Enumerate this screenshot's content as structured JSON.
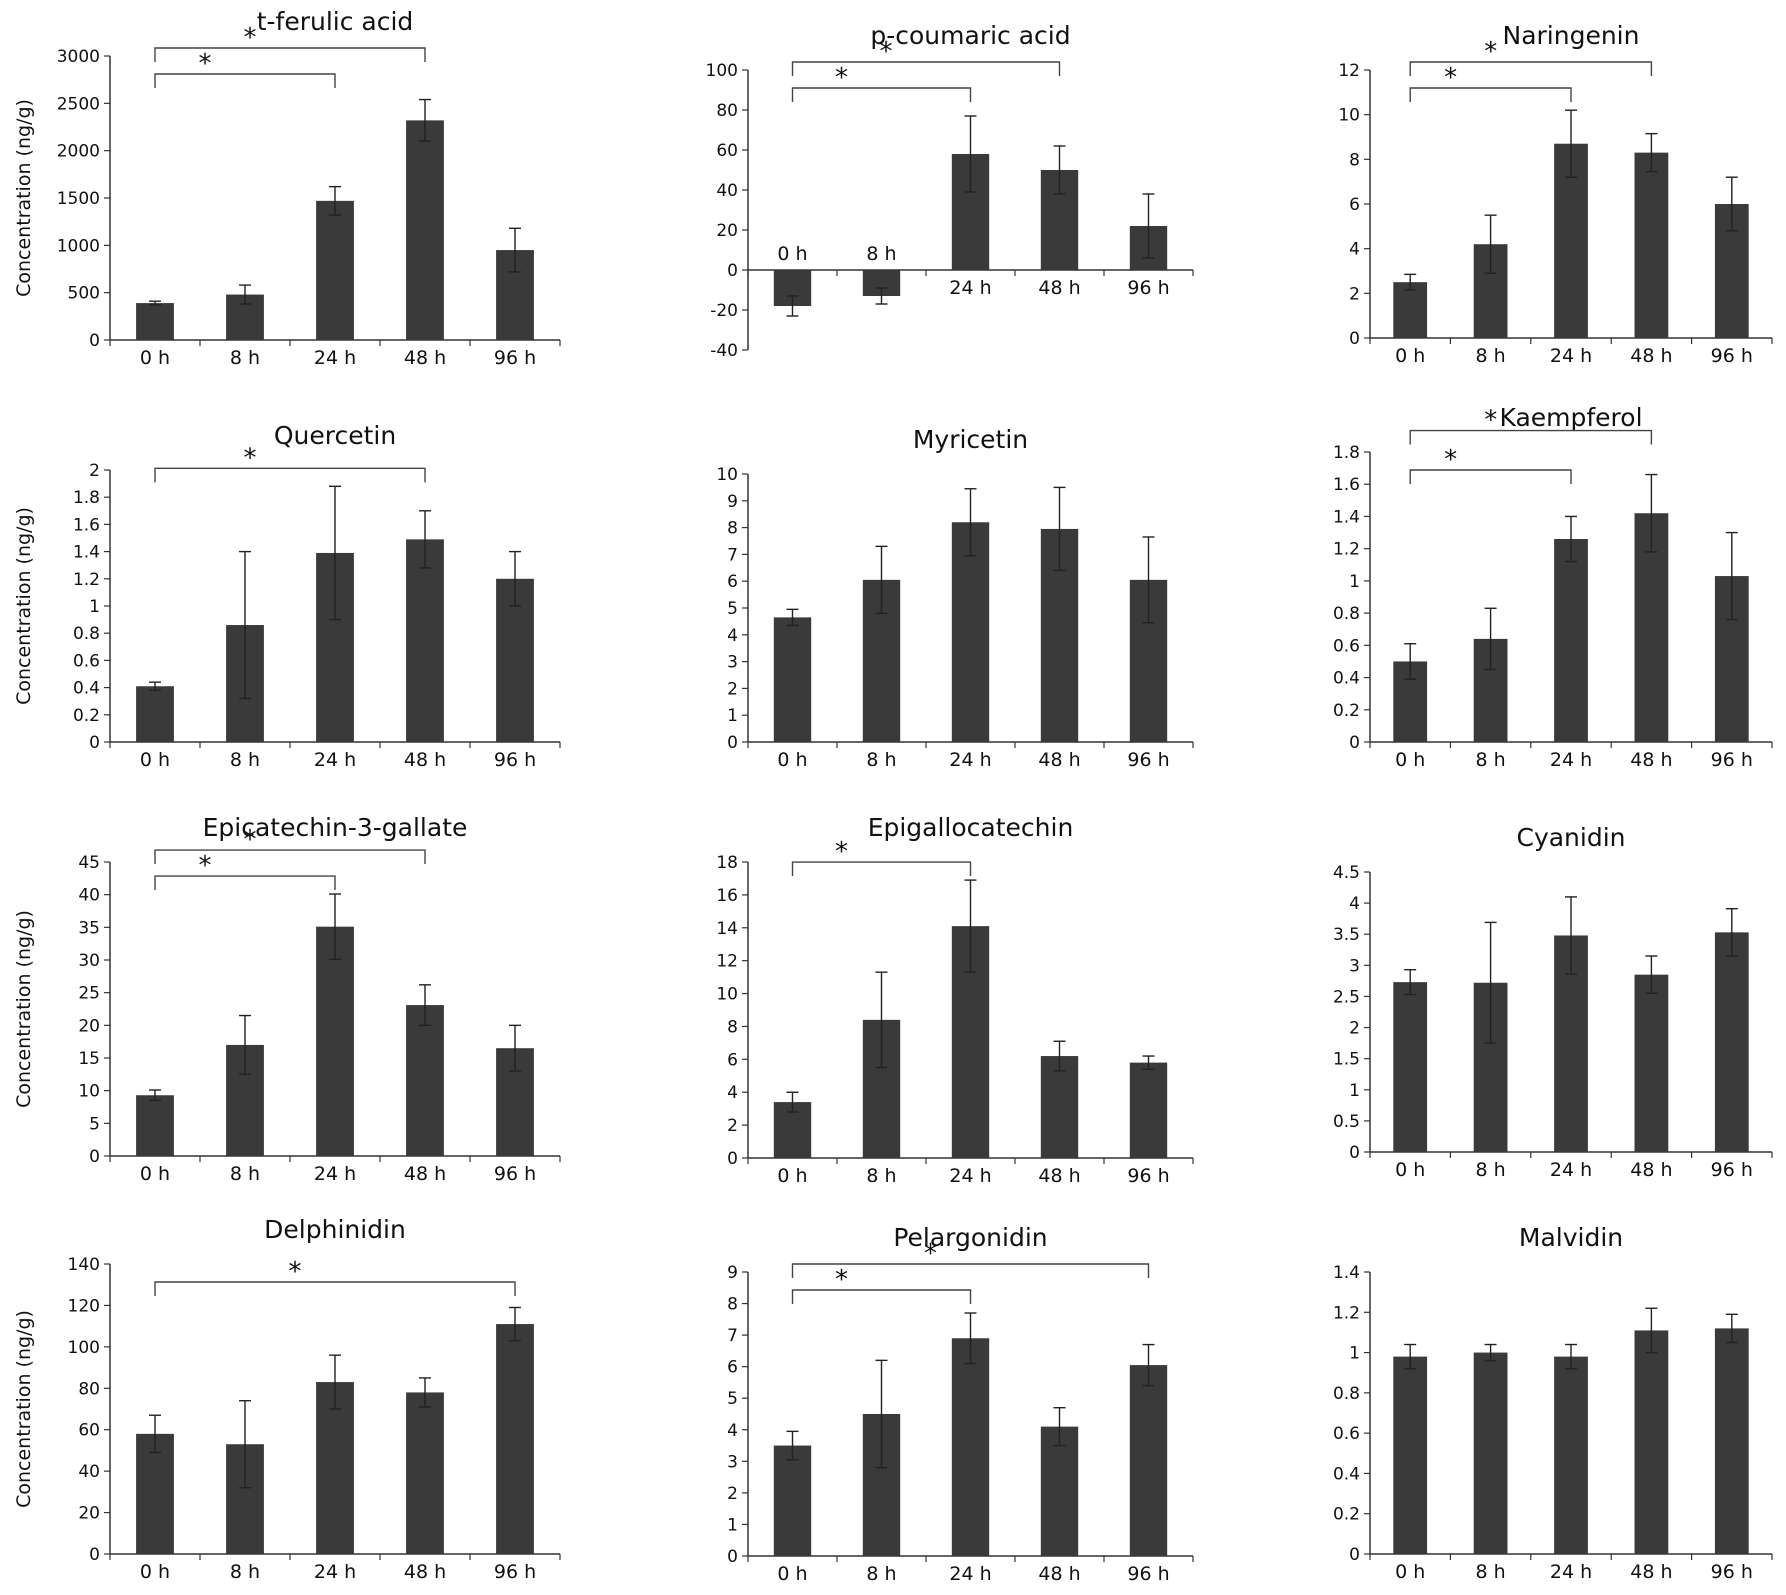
{
  "figure": {
    "ylabel": "Concentration (ng/g)"
  },
  "chart_data": [
    {
      "type": "bar",
      "title": "t-ferulic acid",
      "ylabel": "Concentration (ng/g)",
      "categories": [
        "0 h",
        "8 h",
        "24 h",
        "48 h",
        "96 h"
      ],
      "values": [
        390,
        480,
        1470,
        2320,
        950
      ],
      "errors": [
        20,
        100,
        150,
        220,
        230
      ],
      "ylim": [
        0,
        3000
      ],
      "yticks": [
        0,
        500,
        1000,
        1500,
        2000,
        2500,
        3000
      ],
      "brackets": [
        {
          "from": 0,
          "to": 2,
          "label": "*"
        },
        {
          "from": 0,
          "to": 3,
          "label": "*"
        }
      ]
    },
    {
      "type": "bar",
      "title": "p-coumaric acid",
      "ylabel": "",
      "categories": [
        "0 h",
        "8 h",
        "24 h",
        "48 h",
        "96 h"
      ],
      "values": [
        -18,
        -13,
        58,
        50,
        22
      ],
      "errors": [
        5,
        4,
        19,
        12,
        16
      ],
      "ylim": [
        -40,
        100
      ],
      "yticks": [
        -40,
        -20,
        0,
        20,
        40,
        60,
        80,
        100
      ],
      "brackets": [
        {
          "from": 0,
          "to": 2,
          "label": "*"
        },
        {
          "from": 0,
          "to": 3,
          "label": "*"
        }
      ]
    },
    {
      "type": "bar",
      "title": "Naringenin",
      "ylabel": "",
      "categories": [
        "0 h",
        "8 h",
        "24 h",
        "48 h",
        "96 h"
      ],
      "values": [
        2.5,
        4.2,
        8.7,
        8.3,
        6.0
      ],
      "errors": [
        0.35,
        1.3,
        1.5,
        0.85,
        1.2
      ],
      "ylim": [
        0,
        12
      ],
      "yticks": [
        0,
        2,
        4,
        6,
        8,
        10,
        12
      ],
      "brackets": [
        {
          "from": 0,
          "to": 2,
          "label": "*"
        },
        {
          "from": 0,
          "to": 3,
          "label": "*"
        }
      ]
    },
    {
      "type": "bar",
      "title": "Quercetin",
      "ylabel": "Concentration (ng/g)",
      "categories": [
        "0 h",
        "8 h",
        "24 h",
        "48 h",
        "96 h"
      ],
      "values": [
        0.41,
        0.86,
        1.39,
        1.49,
        1.2
      ],
      "errors": [
        0.03,
        0.54,
        0.49,
        0.21,
        0.2
      ],
      "ylim": [
        0,
        2
      ],
      "yticks": [
        "0",
        "0.2",
        "0.4",
        "0.6",
        "0.8",
        "1",
        "1.2",
        "1.4",
        "1.6",
        "1.8",
        "2"
      ],
      "brackets": [
        {
          "from": 0,
          "to": 3,
          "label": "*"
        }
      ]
    },
    {
      "type": "bar",
      "title": "Myricetin",
      "ylabel": "",
      "categories": [
        "0 h",
        "8 h",
        "24 h",
        "48 h",
        "96 h"
      ],
      "values": [
        4.65,
        6.05,
        8.2,
        7.95,
        6.05
      ],
      "errors": [
        0.3,
        1.25,
        1.25,
        1.55,
        1.6
      ],
      "ylim": [
        0,
        10
      ],
      "yticks": [
        0,
        1,
        2,
        3,
        4,
        5,
        6,
        7,
        8,
        9,
        10
      ],
      "brackets": []
    },
    {
      "type": "bar",
      "title": "Kaempferol",
      "ylabel": "",
      "categories": [
        "0 h",
        "8 h",
        "24 h",
        "48 h",
        "96 h"
      ],
      "values": [
        0.5,
        0.64,
        1.26,
        1.42,
        1.03
      ],
      "errors": [
        0.11,
        0.19,
        0.14,
        0.24,
        0.27
      ],
      "ylim": [
        0,
        1.8
      ],
      "yticks": [
        "0",
        "0.2",
        "0.4",
        "0.6",
        "0.8",
        "1",
        "1.2",
        "1.4",
        "1.6",
        "1.8"
      ],
      "brackets": [
        {
          "from": 0,
          "to": 2,
          "label": "*"
        },
        {
          "from": 0,
          "to": 3,
          "label": "*"
        }
      ]
    },
    {
      "type": "bar",
      "title": "Epicatechin-3-gallate",
      "ylabel": "Concentration (ng/g)",
      "categories": [
        "0 h",
        "8 h",
        "24 h",
        "48 h",
        "96 h"
      ],
      "values": [
        9.3,
        17,
        35.1,
        23.1,
        16.5
      ],
      "errors": [
        0.8,
        4.5,
        5,
        3.1,
        3.5
      ],
      "ylim": [
        0,
        45
      ],
      "yticks": [
        0,
        5,
        10,
        15,
        20,
        25,
        30,
        35,
        40,
        45
      ],
      "brackets": [
        {
          "from": 0,
          "to": 2,
          "label": "*"
        },
        {
          "from": 0,
          "to": 3,
          "label": "*"
        }
      ]
    },
    {
      "type": "bar",
      "title": "Epigallocatechin",
      "ylabel": "",
      "categories": [
        "0 h",
        "8 h",
        "24 h",
        "48 h",
        "96 h"
      ],
      "values": [
        3.4,
        8.4,
        14.1,
        6.2,
        5.8
      ],
      "errors": [
        0.6,
        2.9,
        2.8,
        0.9,
        0.4
      ],
      "ylim": [
        0,
        18
      ],
      "yticks": [
        0,
        2,
        4,
        6,
        8,
        10,
        12,
        14,
        16,
        18
      ],
      "brackets": [
        {
          "from": 0,
          "to": 2,
          "label": "*"
        }
      ]
    },
    {
      "type": "bar",
      "title": "Cyanidin",
      "ylabel": "",
      "categories": [
        "0 h",
        "8 h",
        "24 h",
        "48 h",
        "96 h"
      ],
      "values": [
        2.73,
        2.72,
        3.48,
        2.85,
        3.53
      ],
      "errors": [
        0.2,
        0.97,
        0.62,
        0.3,
        0.38
      ],
      "ylim": [
        0,
        4.5
      ],
      "yticks": [
        "0",
        "0.5",
        "1",
        "1.5",
        "2",
        "2.5",
        "3",
        "3.5",
        "4",
        "4.5"
      ],
      "brackets": []
    },
    {
      "type": "bar",
      "title": "Delphinidin",
      "ylabel": "Concentration (ng/g)",
      "categories": [
        "0 h",
        "8 h",
        "24 h",
        "48 h",
        "96 h"
      ],
      "values": [
        58,
        53,
        83,
        78,
        111
      ],
      "errors": [
        9,
        21,
        13,
        7,
        8
      ],
      "ylim": [
        0,
        140
      ],
      "yticks": [
        0,
        20,
        40,
        60,
        80,
        100,
        120,
        140
      ],
      "brackets": [
        {
          "from": 0,
          "to": 4,
          "label": "*"
        }
      ]
    },
    {
      "type": "bar",
      "title": "Pelargonidin",
      "ylabel": "",
      "categories": [
        "0 h",
        "8 h",
        "24 h",
        "48 h",
        "96 h"
      ],
      "values": [
        3.5,
        4.5,
        6.9,
        4.1,
        6.05
      ],
      "errors": [
        0.45,
        1.7,
        0.8,
        0.6,
        0.65
      ],
      "ylim": [
        0,
        9
      ],
      "yticks": [
        0,
        1,
        2,
        3,
        4,
        5,
        6,
        7,
        8,
        9
      ],
      "brackets": [
        {
          "from": 0,
          "to": 2,
          "label": "*"
        },
        {
          "from": 0,
          "to": 4,
          "label": "*"
        }
      ]
    },
    {
      "type": "bar",
      "title": "Malvidin",
      "ylabel": "",
      "categories": [
        "0 h",
        "8 h",
        "24 h",
        "48 h",
        "96 h"
      ],
      "values": [
        0.98,
        1.0,
        0.98,
        1.11,
        1.12
      ],
      "errors": [
        0.06,
        0.04,
        0.06,
        0.11,
        0.07
      ],
      "ylim": [
        0,
        1.4
      ],
      "yticks": [
        "0",
        "0.2",
        "0.4",
        "0.6",
        "0.8",
        "1",
        "1.2",
        "1.4"
      ],
      "brackets": []
    }
  ]
}
